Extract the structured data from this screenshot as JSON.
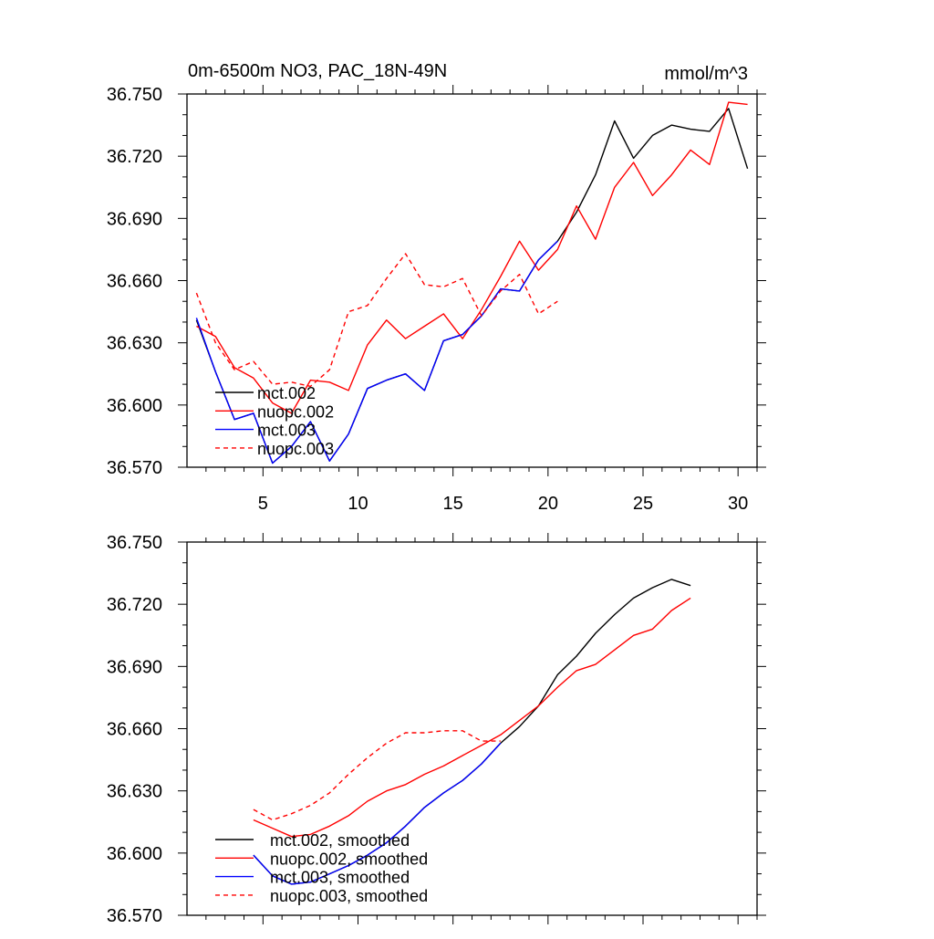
{
  "chart_data": [
    {
      "type": "line",
      "title": "0m-6500m NO3, PAC_18N-49N",
      "units": "mmol/m^3",
      "xlabel": "",
      "ylabel": "",
      "xlim": [
        1,
        31
      ],
      "ylim": [
        36.57,
        36.75
      ],
      "yticks": [
        "36.570",
        "36.600",
        "36.630",
        "36.660",
        "36.690",
        "36.720",
        "36.750"
      ],
      "xticks": [
        "5",
        "10",
        "15",
        "20",
        "25",
        "30"
      ],
      "grid": false,
      "legend": "bottom-left",
      "series": [
        {
          "name": "mct.002",
          "color": "#000000",
          "dash": "solid",
          "x": [
            1.5,
            2.5,
            3.5,
            4.5,
            5.5,
            6.5,
            7.5,
            8.5,
            9.5,
            10.5,
            11.5,
            12.5,
            13.5,
            14.5,
            15.5,
            16.5,
            17.5,
            18.5,
            19.5,
            20.5,
            21.5,
            22.5,
            23.5,
            24.5,
            25.5,
            26.5,
            27.5,
            28.5,
            29.5,
            30.5
          ],
          "y": [
            36.641,
            36.616,
            36.593,
            36.596,
            36.572,
            36.58,
            36.592,
            36.573,
            36.586,
            36.608,
            36.612,
            36.615,
            36.607,
            36.631,
            36.634,
            36.643,
            36.656,
            36.655,
            36.67,
            36.679,
            36.693,
            36.711,
            36.737,
            36.719,
            36.73,
            36.735,
            36.733,
            36.732,
            36.743,
            36.714
          ]
        },
        {
          "name": "nuopc.002",
          "color": "#ff0000",
          "dash": "solid",
          "x": [
            1.5,
            2.5,
            3.5,
            4.5,
            5.5,
            6.5,
            7.5,
            8.5,
            9.5,
            10.5,
            11.5,
            12.5,
            13.5,
            14.5,
            15.5,
            16.5,
            17.5,
            18.5,
            19.5,
            20.5,
            21.5,
            22.5,
            23.5,
            24.5,
            25.5,
            26.5,
            27.5,
            28.5,
            29.5,
            30.5
          ],
          "y": [
            36.638,
            36.633,
            36.618,
            36.613,
            36.601,
            36.596,
            36.612,
            36.611,
            36.607,
            36.629,
            36.641,
            36.632,
            36.638,
            36.644,
            36.632,
            36.646,
            36.662,
            36.679,
            36.665,
            36.675,
            36.696,
            36.68,
            36.705,
            36.717,
            36.701,
            36.711,
            36.723,
            36.716,
            36.746,
            36.745
          ]
        },
        {
          "name": "mct.003",
          "color": "#0000ff",
          "dash": "solid",
          "x": [
            1.5,
            2.5,
            3.5,
            4.5,
            5.5,
            6.5,
            7.5,
            8.5,
            9.5,
            10.5,
            11.5,
            12.5,
            13.5,
            14.5,
            15.5,
            16.5,
            17.5,
            18.5,
            19.5,
            20.5
          ],
          "y": [
            36.642,
            36.616,
            36.593,
            36.596,
            36.572,
            36.58,
            36.592,
            36.573,
            36.586,
            36.608,
            36.612,
            36.615,
            36.607,
            36.631,
            36.634,
            36.643,
            36.656,
            36.655,
            36.67,
            36.679
          ]
        },
        {
          "name": "nuopc.003",
          "color": "#ff0000",
          "dash": "dashed",
          "x": [
            1.5,
            2.5,
            3.5,
            4.5,
            5.5,
            6.5,
            7.5,
            8.5,
            9.5,
            10.5,
            11.5,
            12.5,
            13.5,
            14.5,
            15.5,
            16.5,
            17.5,
            18.5,
            19.5,
            20.5
          ],
          "y": [
            36.654,
            36.63,
            36.617,
            36.621,
            36.61,
            36.611,
            36.609,
            36.617,
            36.645,
            36.648,
            36.661,
            36.673,
            36.658,
            36.657,
            36.661,
            36.643,
            36.655,
            36.663,
            36.644,
            36.65
          ]
        }
      ]
    },
    {
      "type": "line",
      "title": "",
      "xlabel": "",
      "ylabel": "",
      "xlim": [
        1,
        31
      ],
      "ylim": [
        36.57,
        36.75
      ],
      "yticks": [
        "36.570",
        "36.600",
        "36.630",
        "36.660",
        "36.690",
        "36.720",
        "36.750"
      ],
      "xticks": [],
      "grid": false,
      "legend": "bottom-left",
      "series": [
        {
          "name": "mct.002, smoothed",
          "color": "#000000",
          "dash": "solid",
          "x": [
            4.5,
            5.5,
            6.5,
            7.5,
            8.5,
            9.5,
            10.5,
            11.5,
            12.5,
            13.5,
            14.5,
            15.5,
            16.5,
            17.5,
            18.5,
            19.5,
            20.5,
            21.5,
            22.5,
            23.5,
            24.5,
            25.5,
            26.5,
            27.5
          ],
          "y": [
            36.599,
            36.589,
            36.585,
            36.586,
            36.59,
            36.594,
            36.599,
            36.605,
            36.613,
            36.622,
            36.629,
            36.635,
            36.643,
            36.653,
            36.661,
            36.671,
            36.686,
            36.695,
            36.706,
            36.715,
            36.723,
            36.728,
            36.732,
            36.729
          ]
        },
        {
          "name": "nuopc.002, smoothed",
          "color": "#ff0000",
          "dash": "solid",
          "x": [
            4.5,
            5.5,
            6.5,
            7.5,
            8.5,
            9.5,
            10.5,
            11.5,
            12.5,
            13.5,
            14.5,
            15.5,
            16.5,
            17.5,
            18.5,
            19.5,
            20.5,
            21.5,
            22.5,
            23.5,
            24.5,
            25.5,
            26.5,
            27.5
          ],
          "y": [
            36.616,
            36.612,
            36.608,
            36.609,
            36.613,
            36.618,
            36.625,
            36.63,
            36.633,
            36.638,
            36.642,
            36.647,
            36.652,
            36.657,
            36.664,
            36.671,
            36.68,
            36.688,
            36.691,
            36.698,
            36.705,
            36.708,
            36.717,
            36.723
          ]
        },
        {
          "name": "mct.003, smoothed",
          "color": "#0000ff",
          "dash": "solid",
          "x": [
            4.5,
            5.5,
            6.5,
            7.5,
            8.5,
            9.5,
            10.5,
            11.5,
            12.5,
            13.5,
            14.5,
            15.5,
            16.5,
            17.5
          ],
          "y": [
            36.599,
            36.589,
            36.585,
            36.586,
            36.59,
            36.594,
            36.599,
            36.605,
            36.613,
            36.622,
            36.629,
            36.635,
            36.643,
            36.653
          ]
        },
        {
          "name": "nuopc.003, smoothed",
          "color": "#ff0000",
          "dash": "dashed",
          "x": [
            4.5,
            5.5,
            6.5,
            7.5,
            8.5,
            9.5,
            10.5,
            11.5,
            12.5,
            13.5,
            14.5,
            15.5,
            16.5,
            17.5
          ],
          "y": [
            36.621,
            36.616,
            36.619,
            36.623,
            36.629,
            36.638,
            36.646,
            36.653,
            36.658,
            36.658,
            36.659,
            36.659,
            36.654,
            36.654
          ]
        }
      ]
    }
  ]
}
